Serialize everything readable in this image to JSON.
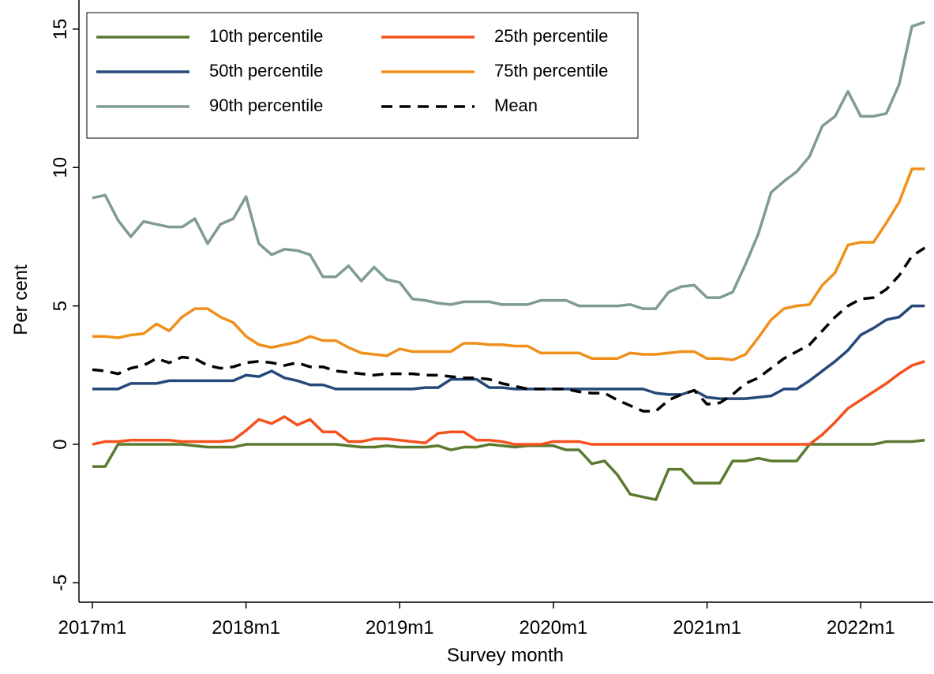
{
  "chart_data": {
    "type": "line",
    "xlabel": "Survey month",
    "ylabel": "Per cent",
    "categories": [
      "2017m1",
      "2017m2",
      "2017m3",
      "2017m4",
      "2017m5",
      "2017m6",
      "2017m7",
      "2017m8",
      "2017m9",
      "2017m10",
      "2017m11",
      "2017m12",
      "2018m1",
      "2018m2",
      "2018m3",
      "2018m4",
      "2018m5",
      "2018m6",
      "2018m7",
      "2018m8",
      "2018m9",
      "2018m10",
      "2018m11",
      "2018m12",
      "2019m1",
      "2019m2",
      "2019m3",
      "2019m4",
      "2019m5",
      "2019m6",
      "2019m7",
      "2019m8",
      "2019m9",
      "2019m10",
      "2019m11",
      "2019m12",
      "2020m1",
      "2020m2",
      "2020m3",
      "2020m4",
      "2020m5",
      "2020m6",
      "2020m7",
      "2020m8",
      "2020m9",
      "2020m10",
      "2020m11",
      "2020m12",
      "2021m1",
      "2021m2",
      "2021m3",
      "2021m4",
      "2021m5",
      "2021m6",
      "2021m7",
      "2021m8",
      "2021m9",
      "2021m10",
      "2021m11",
      "2021m12",
      "2022m1",
      "2022m2",
      "2022m3",
      "2022m4",
      "2022m5",
      "2022m6"
    ],
    "xticks": [
      "2017m1",
      "2018m1",
      "2019m1",
      "2020m1",
      "2021m1",
      "2022m1"
    ],
    "ylim": [
      -5.7,
      16.05
    ],
    "yticks": [
      -5,
      0,
      5,
      10,
      15
    ],
    "legend": "top-left",
    "series": [
      {
        "name": "10th percentile",
        "color": "#5a7a30",
        "values": [
          -0.8,
          -0.8,
          0,
          0,
          0,
          0,
          0,
          0,
          -0.05,
          -0.1,
          -0.1,
          -0.1,
          0,
          0,
          0,
          0,
          0,
          0,
          0,
          0,
          -0.05,
          -0.1,
          -0.1,
          -0.05,
          -0.1,
          -0.1,
          -0.1,
          -0.05,
          -0.2,
          -0.1,
          -0.1,
          0,
          -0.05,
          -0.1,
          -0.05,
          -0.05,
          -0.05,
          -0.2,
          -0.2,
          -0.7,
          -0.6,
          -1.1,
          -1.8,
          -1.9,
          -2.0,
          -0.9,
          -0.9,
          -1.4,
          -1.4,
          -1.4,
          -0.6,
          -0.6,
          -0.5,
          -0.6,
          -0.6,
          -0.6,
          0,
          0,
          0,
          0,
          0,
          0,
          0.1,
          0.1,
          0.1,
          0.15
        ]
      },
      {
        "name": "25th percentile",
        "color": "#f4511e",
        "values": [
          0,
          0.1,
          0.1,
          0.15,
          0.15,
          0.15,
          0.15,
          0.1,
          0.1,
          0.1,
          0.1,
          0.15,
          0.5,
          0.9,
          0.75,
          1.0,
          0.7,
          0.9,
          0.45,
          0.45,
          0.1,
          0.1,
          0.2,
          0.2,
          0.15,
          0.1,
          0.05,
          0.4,
          0.45,
          0.45,
          0.15,
          0.15,
          0.1,
          0,
          0,
          0,
          0.1,
          0.1,
          0.1,
          0,
          0,
          0,
          0,
          0,
          0,
          0,
          0,
          0,
          0,
          0,
          0,
          0,
          0,
          0,
          0,
          0,
          0,
          0.35,
          0.8,
          1.3,
          1.6,
          1.9,
          2.2,
          2.55,
          2.85,
          3.0
        ]
      },
      {
        "name": "50th percentile",
        "color": "#24497a",
        "values": [
          2,
          2,
          2,
          2.2,
          2.2,
          2.2,
          2.3,
          2.3,
          2.3,
          2.3,
          2.3,
          2.3,
          2.5,
          2.45,
          2.65,
          2.4,
          2.3,
          2.15,
          2.15,
          2.0,
          2.0,
          2.0,
          2.0,
          2.0,
          2.0,
          2.0,
          2.05,
          2.05,
          2.35,
          2.35,
          2.35,
          2.05,
          2.05,
          2.0,
          2.0,
          2.0,
          2.0,
          2.0,
          2.0,
          2.0,
          2.0,
          2.0,
          2.0,
          2.0,
          1.85,
          1.8,
          1.8,
          1.95,
          1.7,
          1.65,
          1.65,
          1.65,
          1.7,
          1.75,
          2.0,
          2.0,
          2.3,
          2.65,
          3.0,
          3.4,
          3.95,
          4.2,
          4.5,
          4.6,
          5.0,
          5.0
        ]
      },
      {
        "name": "75th percentile",
        "color": "#f0901c",
        "values": [
          3.9,
          3.9,
          3.85,
          3.95,
          4.0,
          4.35,
          4.1,
          4.6,
          4.9,
          4.9,
          4.6,
          4.4,
          3.9,
          3.6,
          3.5,
          3.6,
          3.7,
          3.9,
          3.75,
          3.75,
          3.5,
          3.3,
          3.25,
          3.2,
          3.45,
          3.35,
          3.35,
          3.35,
          3.35,
          3.65,
          3.65,
          3.6,
          3.6,
          3.55,
          3.55,
          3.3,
          3.3,
          3.3,
          3.3,
          3.1,
          3.1,
          3.1,
          3.3,
          3.25,
          3.25,
          3.3,
          3.35,
          3.35,
          3.1,
          3.1,
          3.05,
          3.25,
          3.85,
          4.5,
          4.9,
          5.0,
          5.05,
          5.75,
          6.2,
          7.2,
          7.3,
          7.3,
          8.0,
          8.75,
          9.95,
          9.95
        ]
      },
      {
        "name": "90th percentile",
        "color": "#7f9c8e",
        "values": [
          8.9,
          9.0,
          8.1,
          7.5,
          8.05,
          7.95,
          7.85,
          7.85,
          8.15,
          7.25,
          7.95,
          8.15,
          8.95,
          7.25,
          6.85,
          7.05,
          7.0,
          6.85,
          6.05,
          6.05,
          6.45,
          5.9,
          6.4,
          5.95,
          5.85,
          5.25,
          5.2,
          5.1,
          5.05,
          5.15,
          5.15,
          5.15,
          5.05,
          5.05,
          5.05,
          5.2,
          5.2,
          5.2,
          5.0,
          5.0,
          5.0,
          5.0,
          5.05,
          4.9,
          4.9,
          5.5,
          5.7,
          5.75,
          5.3,
          5.3,
          5.5,
          6.5,
          7.6,
          9.1,
          9.5,
          9.85,
          10.4,
          11.5,
          11.85,
          12.75,
          11.85,
          11.85,
          11.95,
          13.0,
          15.1,
          15.25
        ]
      },
      {
        "name": "Mean",
        "color": "#000000",
        "dashed": true,
        "values": [
          2.7,
          2.65,
          2.55,
          2.75,
          2.85,
          3.1,
          2.95,
          3.15,
          3.1,
          2.85,
          2.75,
          2.8,
          2.95,
          3.0,
          2.95,
          2.85,
          2.95,
          2.8,
          2.8,
          2.65,
          2.6,
          2.55,
          2.5,
          2.55,
          2.55,
          2.55,
          2.5,
          2.5,
          2.45,
          2.4,
          2.4,
          2.35,
          2.2,
          2.1,
          2.0,
          2.0,
          2.0,
          2.0,
          1.9,
          1.85,
          1.85,
          1.6,
          1.4,
          1.2,
          1.2,
          1.6,
          1.8,
          1.95,
          1.45,
          1.5,
          1.8,
          2.2,
          2.4,
          2.75,
          3.1,
          3.35,
          3.6,
          4.1,
          4.6,
          5.0,
          5.25,
          5.3,
          5.6,
          6.1,
          6.8,
          7.1
        ]
      }
    ]
  }
}
